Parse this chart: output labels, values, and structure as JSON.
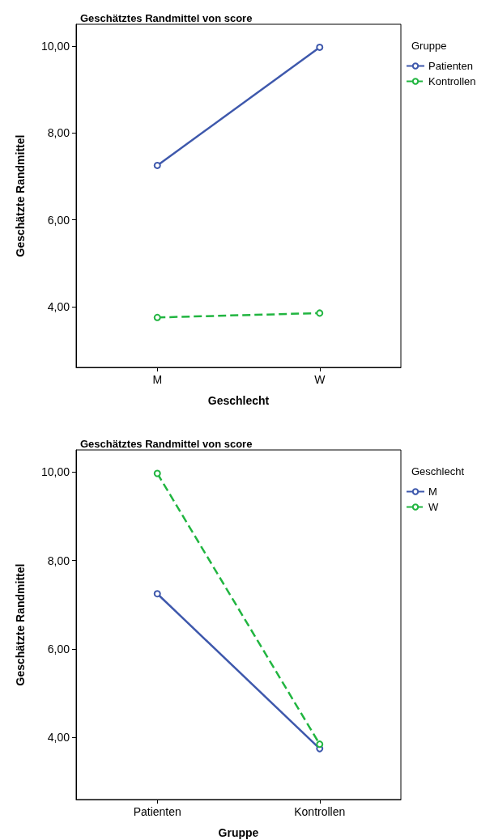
{
  "chart_data": [
    {
      "type": "line",
      "title": "Geschätztes Randmittel von score",
      "xlabel": "Geschlecht",
      "ylabel": "Geschätzte Randmittel",
      "legend_title": "Gruppe",
      "categories": [
        "M",
        "W"
      ],
      "series": [
        {
          "name": "Patienten",
          "color": "#3e58ac",
          "values": [
            7.25,
            9.97
          ],
          "line_style": "solid"
        },
        {
          "name": "Kontrollen",
          "color": "#21b540",
          "values": [
            3.75,
            3.85
          ],
          "line_style": "dashed"
        }
      ],
      "ylim": [
        2.6,
        10.5
      ],
      "yticks": [
        {
          "value": 4,
          "label": "4,00"
        },
        {
          "value": 6,
          "label": "6,00"
        },
        {
          "value": 8,
          "label": "8,00"
        },
        {
          "value": 10,
          "label": "10,00"
        }
      ],
      "grid": false,
      "legend": "right",
      "marker": "circle"
    },
    {
      "type": "line",
      "title": "Geschätztes Randmittel von score",
      "xlabel": "Gruppe",
      "ylabel": "Geschätzte Randmittel",
      "legend_title": "Geschlecht",
      "categories": [
        "Patienten",
        "Kontrollen"
      ],
      "series": [
        {
          "name": "M",
          "color": "#3e58ac",
          "values": [
            7.25,
            3.75
          ],
          "line_style": "solid"
        },
        {
          "name": "W",
          "color": "#21b540",
          "values": [
            9.97,
            3.85
          ],
          "line_style": "dashed"
        }
      ],
      "ylim": [
        2.6,
        10.5
      ],
      "yticks": [
        {
          "value": 4,
          "label": "4,00"
        },
        {
          "value": 6,
          "label": "6,00"
        },
        {
          "value": 8,
          "label": "8,00"
        },
        {
          "value": 10,
          "label": "10,00"
        }
      ],
      "grid": false,
      "legend": "right",
      "marker": "circle"
    }
  ]
}
